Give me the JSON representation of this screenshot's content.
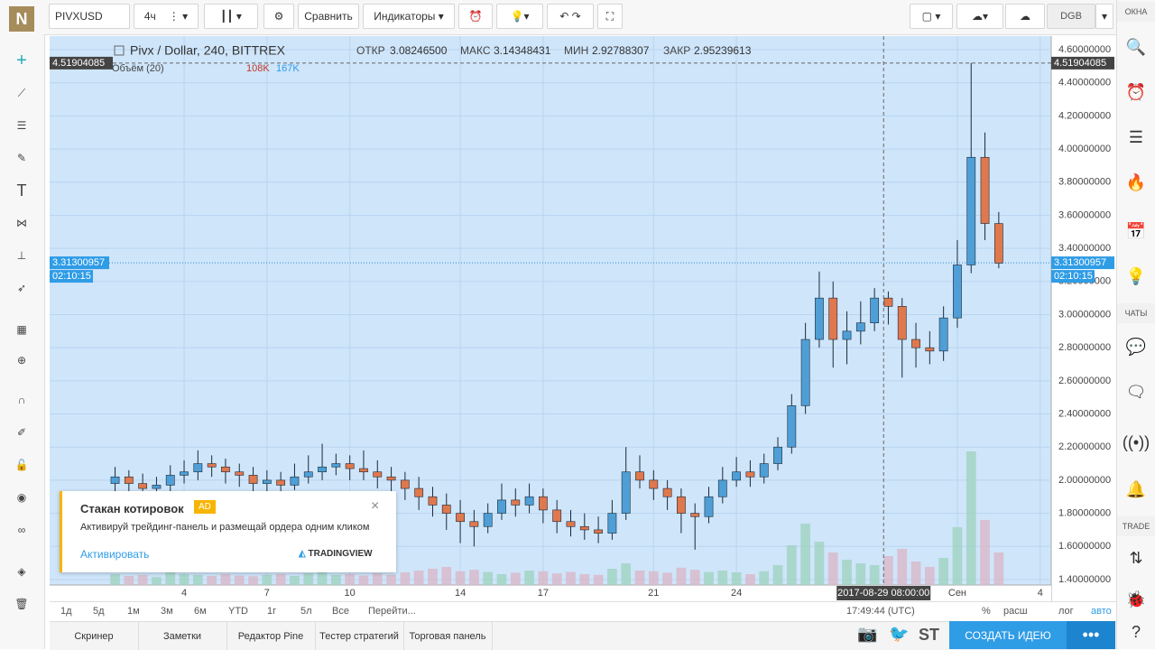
{
  "header": {
    "symbol": "PIVXUSD",
    "interval": "4ч",
    "compare": "Сравнить",
    "indicators": "Индикаторы",
    "watch": "DGB",
    "logo": "N"
  },
  "sidebar": {
    "windows": "ОКНА",
    "chats": "ЧАТЫ",
    "trade": "TRADE"
  },
  "legend": {
    "title": "Pivx / Dollar, 240, BITTREX",
    "open_label": "ОТКР",
    "open": "3.08246500",
    "high_label": "МАКС",
    "high": "3.14348431",
    "low_label": "МИН",
    "low": "2.92788307",
    "close_label": "ЗАКР",
    "close": "2.95239613",
    "volume": "Объём (20)",
    "vol1": "108K",
    "vol2": "167K"
  },
  "chart_data": {
    "type": "candlestick",
    "x": [
      1.5,
      2,
      2.5,
      3,
      3.5,
      4,
      4.5,
      5,
      5.5,
      6,
      6.5,
      7,
      7.5,
      8,
      8.5,
      9,
      9.5,
      10,
      10.5,
      11,
      11.5,
      12,
      12.5,
      13,
      13.5,
      14,
      14.5,
      15,
      15.5,
      16,
      16.5,
      17,
      17.5,
      18,
      18.5,
      19,
      19.5,
      20,
      20.5,
      21,
      21.5,
      22,
      22.5,
      23,
      23.5,
      24,
      24.5,
      25,
      25.5,
      26,
      26.5,
      27,
      27.5,
      28,
      28.5,
      29,
      29.5,
      30,
      30.5,
      31,
      31.5,
      32,
      32.5,
      33,
      33.5
    ],
    "candles": [
      [
        1.98,
        2.08,
        1.92,
        2.02
      ],
      [
        2.02,
        2.06,
        1.92,
        1.98
      ],
      [
        1.98,
        2.04,
        1.89,
        1.95
      ],
      [
        1.95,
        2.02,
        1.9,
        1.97
      ],
      [
        1.97,
        2.09,
        1.93,
        2.03
      ],
      [
        2.03,
        2.12,
        1.98,
        2.05
      ],
      [
        2.05,
        2.18,
        2.0,
        2.1
      ],
      [
        2.1,
        2.15,
        2.02,
        2.08
      ],
      [
        2.08,
        2.13,
        1.98,
        2.05
      ],
      [
        2.05,
        2.1,
        1.96,
        2.03
      ],
      [
        2.03,
        2.08,
        1.92,
        1.98
      ],
      [
        1.98,
        2.06,
        1.93,
        2.0
      ],
      [
        2.0,
        2.05,
        1.9,
        1.97
      ],
      [
        1.97,
        2.1,
        1.94,
        2.02
      ],
      [
        2.02,
        2.15,
        1.98,
        2.05
      ],
      [
        2.05,
        2.22,
        2.0,
        2.08
      ],
      [
        2.08,
        2.16,
        2.03,
        2.1
      ],
      [
        2.1,
        2.15,
        2.0,
        2.07
      ],
      [
        2.07,
        2.18,
        2.0,
        2.05
      ],
      [
        2.05,
        2.12,
        1.95,
        2.02
      ],
      [
        2.02,
        2.08,
        1.92,
        2.0
      ],
      [
        2.0,
        2.05,
        1.88,
        1.95
      ],
      [
        1.95,
        2.02,
        1.82,
        1.9
      ],
      [
        1.9,
        1.96,
        1.78,
        1.85
      ],
      [
        1.85,
        1.92,
        1.7,
        1.8
      ],
      [
        1.8,
        1.88,
        1.62,
        1.75
      ],
      [
        1.75,
        1.82,
        1.6,
        1.72
      ],
      [
        1.72,
        1.86,
        1.68,
        1.8
      ],
      [
        1.8,
        1.98,
        1.76,
        1.88
      ],
      [
        1.88,
        1.95,
        1.78,
        1.85
      ],
      [
        1.85,
        1.98,
        1.8,
        1.9
      ],
      [
        1.9,
        1.95,
        1.74,
        1.82
      ],
      [
        1.82,
        1.88,
        1.68,
        1.75
      ],
      [
        1.75,
        1.82,
        1.66,
        1.72
      ],
      [
        1.72,
        1.8,
        1.64,
        1.7
      ],
      [
        1.7,
        1.78,
        1.62,
        1.68
      ],
      [
        1.68,
        1.88,
        1.64,
        1.8
      ],
      [
        1.8,
        2.2,
        1.76,
        2.05
      ],
      [
        2.05,
        2.15,
        1.95,
        2.0
      ],
      [
        2.0,
        2.06,
        1.88,
        1.95
      ],
      [
        1.95,
        2.0,
        1.82,
        1.9
      ],
      [
        1.9,
        1.95,
        1.68,
        1.8
      ],
      [
        1.8,
        1.86,
        1.58,
        1.78
      ],
      [
        1.78,
        1.96,
        1.74,
        1.9
      ],
      [
        1.9,
        2.08,
        1.86,
        2.0
      ],
      [
        2.0,
        2.14,
        1.96,
        2.05
      ],
      [
        2.05,
        2.12,
        1.96,
        2.02
      ],
      [
        2.02,
        2.16,
        1.98,
        2.1
      ],
      [
        2.1,
        2.26,
        2.06,
        2.2
      ],
      [
        2.2,
        2.52,
        2.16,
        2.45
      ],
      [
        2.45,
        2.95,
        2.4,
        2.85
      ],
      [
        2.85,
        3.26,
        2.8,
        3.1
      ],
      [
        3.1,
        3.2,
        2.68,
        2.85
      ],
      [
        2.85,
        3.02,
        2.7,
        2.9
      ],
      [
        2.9,
        3.08,
        2.82,
        2.95
      ],
      [
        2.95,
        3.16,
        2.9,
        3.1
      ],
      [
        3.1,
        3.14,
        2.94,
        3.05
      ],
      [
        3.05,
        3.1,
        2.62,
        2.85
      ],
      [
        2.85,
        2.95,
        2.68,
        2.8
      ],
      [
        2.8,
        2.9,
        2.7,
        2.78
      ],
      [
        2.78,
        3.05,
        2.72,
        2.98
      ],
      [
        2.98,
        3.45,
        2.92,
        3.3
      ],
      [
        3.3,
        4.52,
        3.25,
        3.95
      ],
      [
        3.95,
        4.1,
        3.45,
        3.55
      ],
      [
        3.55,
        3.62,
        3.28,
        3.31
      ]
    ],
    "volumes": [
      30,
      25,
      28,
      22,
      35,
      30,
      28,
      25,
      30,
      26,
      24,
      28,
      30,
      25,
      32,
      40,
      28,
      30,
      26,
      32,
      28,
      35,
      40,
      45,
      50,
      38,
      42,
      36,
      30,
      34,
      40,
      38,
      32,
      36,
      30,
      28,
      45,
      60,
      40,
      38,
      34,
      48,
      42,
      36,
      40,
      35,
      30,
      38,
      55,
      110,
      170,
      120,
      90,
      70,
      60,
      55,
      80,
      100,
      65,
      50,
      75,
      160,
      370,
      180,
      90
    ],
    "vlim": [
      0,
      400
    ],
    "up_color": "#4f9fd6",
    "down_color": "#e0784d",
    "xlim": [
      -0.87,
      35.4
    ],
    "ylim": [
      1.367,
      4.682
    ],
    "xticks": [
      4,
      7,
      10,
      14,
      17,
      21,
      24,
      {
        "value": 32,
        "label": "Сен"
      },
      {
        "value": 35,
        "label": "4"
      }
    ],
    "yticks": [
      {
        "value": 1.4,
        "label": "1.40000000"
      },
      {
        "value": 1.6,
        "label": "1.60000000"
      },
      {
        "value": 1.8,
        "label": "1.80000000"
      },
      {
        "value": 2.0,
        "label": "2.00000000"
      },
      {
        "value": 2.2,
        "label": "2.20000000"
      },
      {
        "value": 2.4,
        "label": "2.40000000"
      },
      {
        "value": 2.6,
        "label": "2.60000000"
      },
      {
        "value": 2.8,
        "label": "2.80000000"
      },
      {
        "value": 3.0,
        "label": "3.00000000"
      },
      {
        "value": 3.2,
        "label": "3.20000000"
      },
      {
        "value": 3.4,
        "label": "3.40000000"
      },
      {
        "value": 3.6,
        "label": "3.60000000"
      },
      {
        "value": 3.8,
        "label": "3.80000000"
      },
      {
        "value": 4.0,
        "label": "4.00000000"
      },
      {
        "value": 4.2,
        "label": "4.20000000"
      },
      {
        "value": 4.4,
        "label": "4.40000000"
      },
      {
        "value": 4.6,
        "label": "4.60000000"
      }
    ],
    "grid": true,
    "last_price": {
      "value": 3.31300957,
      "label": "3.31300957",
      "timer": "02:10:15"
    },
    "crosshair": {
      "value": 4.51904085,
      "label": "4.51904085",
      "x": 29.33,
      "x_label": "2017-08-29 08:00:00"
    }
  },
  "ranges": [
    "1д",
    "5д",
    "1м",
    "3м",
    "6м",
    "YTD",
    "1г",
    "5л",
    "Все",
    "Перейти..."
  ],
  "status": {
    "time": "17:49:44 (UTC)",
    "percent": "%",
    "ext": "расш",
    "log": "лог",
    "auto": "авто"
  },
  "tabs": [
    "Скринер",
    "Заметки",
    "Редактор Pine",
    "Тестер стратегий",
    "Торговая панель"
  ],
  "footer": {
    "st": "ST",
    "idea": "СОЗДАТЬ ИДЕЮ"
  },
  "popup": {
    "title": "Стакан котировок",
    "badge": "AD",
    "text": "Активируй трейдинг-панель и размещай ордера одним кликом",
    "action": "Активировать",
    "brand": "TRADINGVIEW"
  }
}
